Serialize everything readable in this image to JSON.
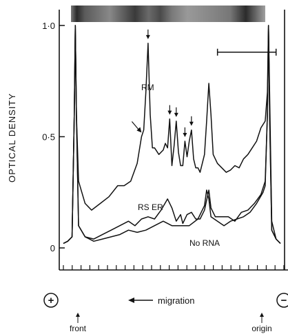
{
  "chart_data": {
    "type": "line",
    "ylabel": "OPTICAL DENSITY",
    "ylim": [
      0,
      1.0
    ],
    "yticks": [
      {
        "value": 0,
        "label": "0"
      },
      {
        "value": 0.5,
        "label": "0·5"
      },
      {
        "value": 1.0,
        "label": "1·0"
      }
    ],
    "x_direction_label": "migration",
    "x_ends": {
      "left": "front",
      "right": "origin"
    },
    "polarity": {
      "left": "+",
      "right": "−"
    },
    "grid": false,
    "series": [
      {
        "name": "RM",
        "points": [
          [
            0,
            0.02
          ],
          [
            2,
            0.03
          ],
          [
            4,
            0.05
          ],
          [
            5,
            0.6
          ],
          [
            5.5,
            1.0
          ],
          [
            6,
            0.6
          ],
          [
            7,
            0.3
          ],
          [
            10,
            0.2
          ],
          [
            13,
            0.17
          ],
          [
            17,
            0.2
          ],
          [
            21,
            0.23
          ],
          [
            25,
            0.28
          ],
          [
            28,
            0.28
          ],
          [
            31,
            0.3
          ],
          [
            34,
            0.38
          ],
          [
            36,
            0.5
          ],
          [
            37,
            0.53
          ],
          [
            38,
            0.7
          ],
          [
            39,
            0.92
          ],
          [
            40,
            0.6
          ],
          [
            41,
            0.45
          ],
          [
            42,
            0.45
          ],
          [
            44,
            0.42
          ],
          [
            46,
            0.44
          ],
          [
            47,
            0.47
          ],
          [
            48,
            0.45
          ],
          [
            49,
            0.58
          ],
          [
            50,
            0.37
          ],
          [
            51,
            0.46
          ],
          [
            52,
            0.57
          ],
          [
            53,
            0.43
          ],
          [
            54,
            0.37
          ],
          [
            55,
            0.37
          ],
          [
            56,
            0.48
          ],
          [
            57,
            0.41
          ],
          [
            58,
            0.48
          ],
          [
            59,
            0.53
          ],
          [
            60,
            0.4
          ],
          [
            61,
            0.36
          ],
          [
            62,
            0.36
          ],
          [
            63,
            0.34
          ],
          [
            64,
            0.38
          ],
          [
            65,
            0.42
          ],
          [
            66,
            0.57
          ],
          [
            67,
            0.74
          ],
          [
            68,
            0.6
          ],
          [
            69,
            0.42
          ],
          [
            71,
            0.38
          ],
          [
            73,
            0.36
          ],
          [
            75,
            0.34
          ],
          [
            77,
            0.35
          ],
          [
            79,
            0.37
          ],
          [
            81,
            0.36
          ],
          [
            83,
            0.4
          ],
          [
            85,
            0.42
          ],
          [
            87,
            0.45
          ],
          [
            89,
            0.48
          ],
          [
            91,
            0.54
          ],
          [
            93,
            0.57
          ],
          [
            94,
            0.7
          ],
          [
            94.5,
            1.0
          ],
          [
            95,
            0.7
          ],
          [
            96,
            0.12
          ],
          [
            98,
            0.04
          ],
          [
            100,
            0.02
          ]
        ]
      },
      {
        "name": "RS ER",
        "points": [
          [
            0,
            0.02
          ],
          [
            2,
            0.03
          ],
          [
            4,
            0.05
          ],
          [
            5,
            0.6
          ],
          [
            5.5,
            1.0
          ],
          [
            6,
            0.6
          ],
          [
            7,
            0.1
          ],
          [
            10,
            0.05
          ],
          [
            14,
            0.04
          ],
          [
            18,
            0.06
          ],
          [
            22,
            0.08
          ],
          [
            26,
            0.1
          ],
          [
            30,
            0.12
          ],
          [
            33,
            0.1
          ],
          [
            36,
            0.13
          ],
          [
            39,
            0.14
          ],
          [
            42,
            0.13
          ],
          [
            45,
            0.17
          ],
          [
            48,
            0.22
          ],
          [
            50,
            0.18
          ],
          [
            52,
            0.12
          ],
          [
            54,
            0.15
          ],
          [
            55,
            0.11
          ],
          [
            57,
            0.15
          ],
          [
            59,
            0.16
          ],
          [
            61,
            0.13
          ],
          [
            63,
            0.13
          ],
          [
            65,
            0.17
          ],
          [
            67,
            0.26
          ],
          [
            68,
            0.18
          ],
          [
            70,
            0.14
          ],
          [
            73,
            0.14
          ],
          [
            76,
            0.14
          ],
          [
            79,
            0.12
          ],
          [
            82,
            0.16
          ],
          [
            85,
            0.17
          ],
          [
            88,
            0.2
          ],
          [
            91,
            0.24
          ],
          [
            93,
            0.3
          ],
          [
            94,
            0.6
          ],
          [
            94.5,
            1.0
          ],
          [
            95,
            0.6
          ],
          [
            96,
            0.08
          ],
          [
            98,
            0.04
          ],
          [
            100,
            0.02
          ]
        ]
      },
      {
        "name": "No RNA",
        "points": [
          [
            0,
            0.02
          ],
          [
            2,
            0.03
          ],
          [
            4,
            0.05
          ],
          [
            5,
            0.6
          ],
          [
            5.5,
            1.0
          ],
          [
            6,
            0.6
          ],
          [
            7,
            0.1
          ],
          [
            10,
            0.05
          ],
          [
            14,
            0.03
          ],
          [
            18,
            0.04
          ],
          [
            22,
            0.05
          ],
          [
            26,
            0.06
          ],
          [
            30,
            0.08
          ],
          [
            34,
            0.07
          ],
          [
            38,
            0.08
          ],
          [
            42,
            0.1
          ],
          [
            46,
            0.12
          ],
          [
            50,
            0.1
          ],
          [
            54,
            0.1
          ],
          [
            58,
            0.1
          ],
          [
            62,
            0.13
          ],
          [
            65,
            0.19
          ],
          [
            66,
            0.26
          ],
          [
            67,
            0.22
          ],
          [
            68,
            0.14
          ],
          [
            71,
            0.12
          ],
          [
            74,
            0.1
          ],
          [
            77,
            0.12
          ],
          [
            80,
            0.13
          ],
          [
            83,
            0.14
          ],
          [
            86,
            0.16
          ],
          [
            89,
            0.2
          ],
          [
            92,
            0.25
          ],
          [
            93,
            0.28
          ],
          [
            94,
            0.6
          ],
          [
            94.5,
            1.0
          ],
          [
            95,
            0.6
          ],
          [
            96,
            0.08
          ],
          [
            98,
            0.04
          ],
          [
            100,
            0.02
          ]
        ]
      }
    ],
    "annotations": {
      "peak_arrows": [
        {
          "x": 39,
          "y": 0.92
        },
        {
          "x": 36,
          "y": 0.5
        },
        {
          "x": 49,
          "y": 0.58
        },
        {
          "x": 52,
          "y": 0.57
        },
        {
          "x": 56,
          "y": 0.48
        },
        {
          "x": 59,
          "y": 0.53
        }
      ],
      "range_bar": {
        "x_start": 71,
        "x_end": 98,
        "y": 0.88
      }
    }
  }
}
